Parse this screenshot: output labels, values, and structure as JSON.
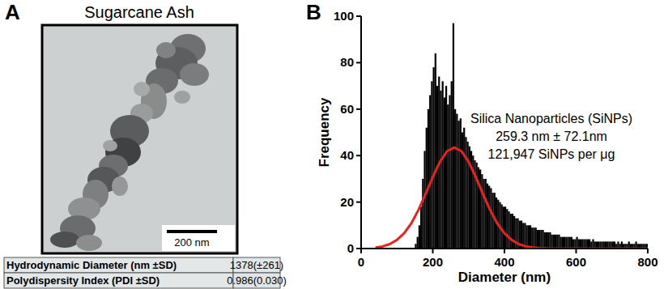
{
  "panel_a": {
    "panel_label": "A",
    "title": "Sugarcane Ash",
    "scale_bar_label": "200 nm",
    "table": {
      "rows": [
        [
          "Hydrodynamic Diameter (nm ±SD)",
          "1378(±261)"
        ],
        [
          "Polydispersity Index (PDI ±SD)",
          "0.986(0.030)"
        ]
      ]
    }
  },
  "chart_data": {
    "type": "histogram",
    "panel_label": "B",
    "xlabel": "Diameter (nm)",
    "ylabel": "Frequency",
    "color": "#000000",
    "bins": [
      150,
      155,
      160,
      165,
      170,
      175,
      180,
      185,
      190,
      195,
      200,
      205,
      210,
      215,
      220,
      225,
      230,
      235,
      240,
      245,
      250,
      255,
      260,
      265,
      270,
      275,
      280,
      285,
      290,
      295,
      300,
      305,
      310,
      315,
      320,
      325,
      330,
      335,
      340,
      345,
      350,
      355,
      360,
      365,
      370,
      375,
      380,
      385,
      390,
      395,
      400,
      405,
      410,
      415,
      420,
      425,
      430,
      435,
      440,
      445,
      450,
      455,
      460,
      465,
      470,
      475,
      480,
      485,
      490,
      495,
      500,
      505,
      510,
      515,
      520,
      525,
      530,
      535,
      540,
      545,
      550,
      555,
      560,
      565,
      570,
      575,
      580,
      585,
      590,
      595,
      600,
      605,
      610,
      615,
      620,
      625,
      630,
      635,
      640,
      645,
      650,
      655,
      660,
      665,
      670,
      675,
      680,
      685,
      690,
      695,
      700,
      705,
      710,
      715,
      720,
      725,
      730,
      735,
      740,
      745,
      750,
      755,
      760,
      765,
      770,
      775,
      780,
      785,
      790,
      795,
      800
    ],
    "counts": [
      2,
      5,
      10,
      18,
      30,
      42,
      52,
      60,
      66,
      72,
      78,
      84,
      70,
      74,
      68,
      72,
      65,
      70,
      62,
      66,
      72,
      97,
      60,
      58,
      55,
      56,
      50,
      52,
      48,
      46,
      44,
      42,
      40,
      38,
      37,
      35,
      34,
      32,
      30,
      30,
      28,
      27,
      26,
      24,
      24,
      22,
      21,
      20,
      19,
      18,
      18,
      17,
      16,
      15,
      15,
      14,
      13,
      13,
      12,
      12,
      11,
      11,
      10,
      10,
      10,
      9,
      9,
      9,
      8,
      8,
      8,
      8,
      7,
      7,
      7,
      7,
      6,
      6,
      6,
      6,
      6,
      5,
      5,
      5,
      5,
      5,
      5,
      5,
      4,
      4,
      5,
      4,
      4,
      4,
      4,
      4,
      4,
      4,
      3,
      4,
      3,
      3,
      3,
      3,
      3,
      3,
      3,
      3,
      3,
      3,
      3,
      3,
      2,
      3,
      2,
      3,
      2,
      2,
      2,
      3,
      2,
      2,
      2,
      3,
      2,
      2,
      2,
      2,
      2,
      2
    ],
    "series": [
      {
        "type": "line",
        "color": "#e8231e",
        "x": [
          40,
          60,
          80,
          100,
          120,
          140,
          160,
          180,
          200,
          220,
          240,
          260,
          280,
          300,
          320,
          340,
          360,
          380,
          400,
          420,
          440,
          460,
          480,
          500,
          520,
          600,
          700,
          800
        ],
        "values": [
          0.4,
          0.9,
          1.9,
          3.7,
          6.6,
          10.8,
          16.6,
          23.5,
          30.8,
          37.3,
          41.9,
          43.5,
          41.9,
          37.3,
          30.8,
          23.5,
          16.6,
          10.8,
          6.6,
          3.7,
          1.9,
          0.9,
          0.4,
          0.2,
          0.1,
          0,
          0,
          0
        ]
      }
    ],
    "xlim": [
      0,
      800
    ],
    "xticks": [
      0,
      200,
      400,
      600,
      800
    ],
    "ylim": [
      0,
      100
    ],
    "yticks": [
      0,
      20,
      40,
      60,
      80,
      100
    ],
    "annotations": [
      "Silica Nanoparticles (SiNPs)",
      "259.3 nm ± 72.1nm",
      "121,947 SiNPs per μg"
    ]
  }
}
